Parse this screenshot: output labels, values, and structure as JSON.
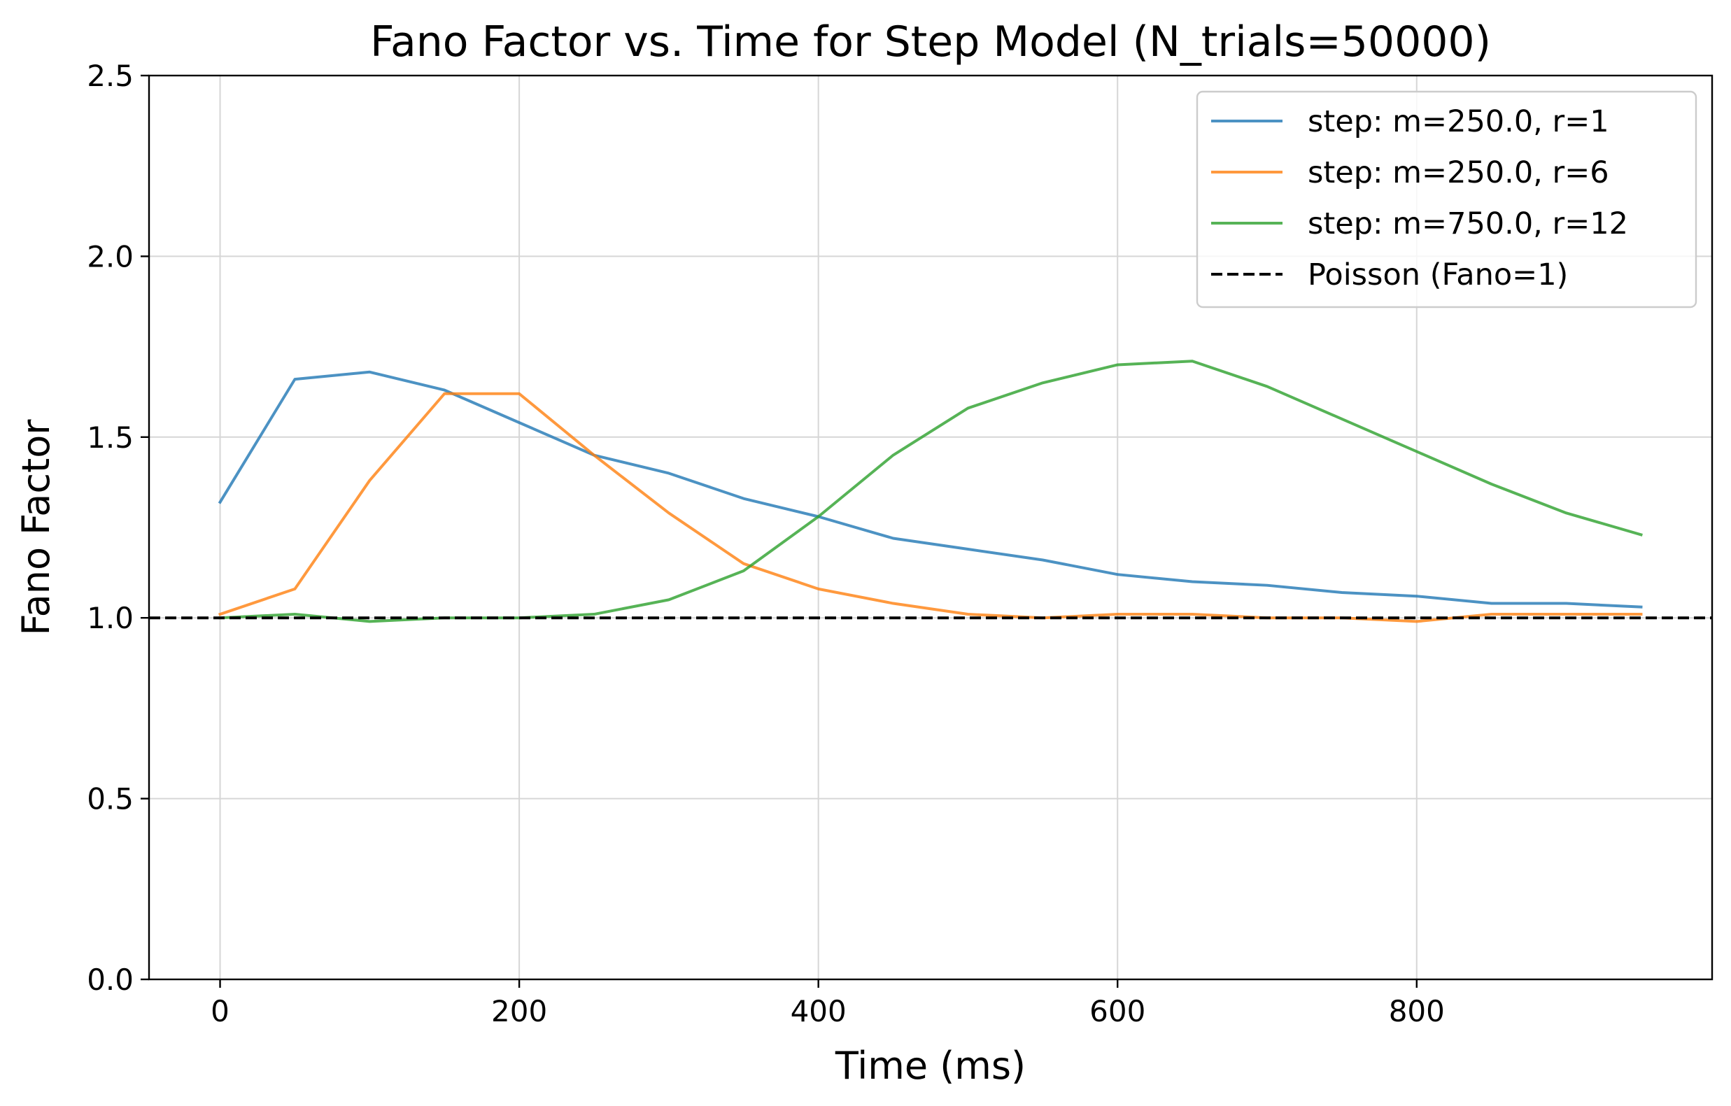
{
  "chart_data": {
    "type": "line",
    "title": "Fano Factor vs. Time for Step Model (N_trials=50000)",
    "xlabel": "Time (ms)",
    "ylabel": "Fano Factor",
    "xlim": [
      -47.5,
      997.5
    ],
    "ylim": [
      0,
      2.5
    ],
    "xticks": [
      0,
      200,
      400,
      600,
      800
    ],
    "yticks": [
      0.0,
      0.5,
      1.0,
      1.5,
      2.0,
      2.5
    ],
    "xtick_labels": [
      "0",
      "200",
      "400",
      "600",
      "800"
    ],
    "ytick_labels": [
      "0.0",
      "0.5",
      "1.0",
      "1.5",
      "2.0",
      "2.5"
    ],
    "grid": true,
    "legend_placement": "top-right",
    "x": [
      0,
      50,
      100,
      150,
      200,
      250,
      300,
      350,
      400,
      450,
      500,
      550,
      600,
      650,
      700,
      750,
      800,
      850,
      900,
      950
    ],
    "series": [
      {
        "name": "step: m=250.0, r=1",
        "color": "#1f77b4",
        "style": "solid",
        "values": [
          1.32,
          1.66,
          1.68,
          1.63,
          1.54,
          1.45,
          1.4,
          1.33,
          1.28,
          1.22,
          1.19,
          1.16,
          1.12,
          1.1,
          1.09,
          1.07,
          1.06,
          1.04,
          1.04,
          1.03
        ]
      },
      {
        "name": "step: m=250.0, r=6",
        "color": "#ff7f0e",
        "style": "solid",
        "values": [
          1.01,
          1.08,
          1.38,
          1.62,
          1.62,
          1.45,
          1.29,
          1.15,
          1.08,
          1.04,
          1.01,
          1.0,
          1.01,
          1.01,
          1.0,
          1.0,
          0.99,
          1.01,
          1.01,
          1.01
        ]
      },
      {
        "name": "step: m=750.0, r=12",
        "color": "#2ca02c",
        "style": "solid",
        "values": [
          1.0,
          1.01,
          0.99,
          1.0,
          1.0,
          1.01,
          1.05,
          1.13,
          1.28,
          1.45,
          1.58,
          1.65,
          1.7,
          1.71,
          1.64,
          1.55,
          1.46,
          1.37,
          1.29,
          1.23
        ]
      }
    ],
    "reference_line": {
      "name": "Poisson (Fano=1)",
      "y": 1.0,
      "color": "#000000",
      "style": "dashed"
    }
  }
}
